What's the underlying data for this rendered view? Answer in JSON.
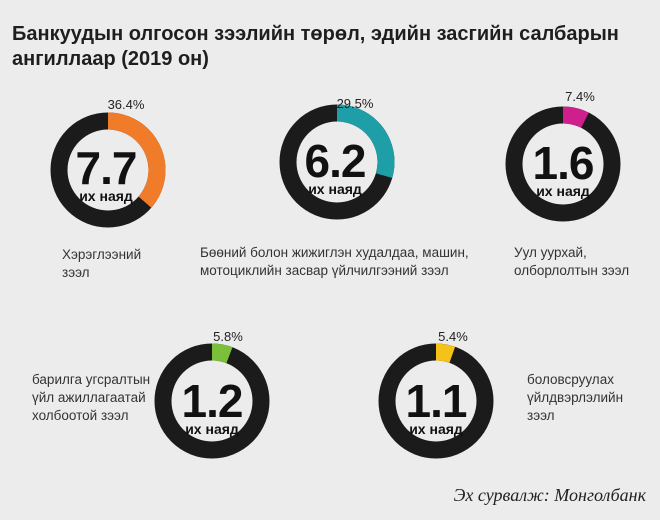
{
  "title": "Банкуудын олгосон зээлийн төрөл, эдийн засгийн салбарын ангиллаар (2019 он)",
  "source": "Эх сурвалж: Монголбанк",
  "unit_label": "их наяд",
  "colors": {
    "ring": "#1b1b1b",
    "orange": "#f07c2a",
    "teal": "#1e9ea6",
    "magenta": "#cf1f8c",
    "green": "#7bbf3a",
    "yellow": "#f5c21a"
  },
  "chart_data": {
    "type": "pie",
    "title": "Банкуудын олгосон зээлийн төрөл, эдийн засгийн салбарын ангиллаар (2019 он)",
    "value_unit": "их наяд",
    "items": [
      {
        "category_lines": [
          "Хэрэглээний",
          "зээл"
        ],
        "value": 7.7,
        "value_text": "7.7",
        "share_pct": 36.4,
        "share_text": "36.4%",
        "color": "#f07c2a"
      },
      {
        "category_lines": [
          "Бөөний болон жижиглэн худалдаа, машин,",
          "мотоциклийн засвар үйлчилгээний зээл"
        ],
        "value": 6.2,
        "value_text": "6.2",
        "share_pct": 29.5,
        "share_text": "29.5%",
        "color": "#1e9ea6"
      },
      {
        "category_lines": [
          "Уул уурхай,",
          "олборлолтын зээл"
        ],
        "value": 1.6,
        "value_text": "1.6",
        "share_pct": 7.4,
        "share_text": "7.4%",
        "color": "#cf1f8c"
      },
      {
        "category_lines": [
          "барилга угсралтын",
          "үйл ажиллагаатай",
          "холбоотой зээл"
        ],
        "value": 1.2,
        "value_text": "1.2",
        "share_pct": 5.8,
        "share_text": "5.8%",
        "color": "#7bbf3a"
      },
      {
        "category_lines": [
          "боловсруулах",
          "үйлдвэрлэлийн",
          "зээл"
        ],
        "value": 1.1,
        "value_text": "1.1",
        "share_pct": 5.4,
        "share_text": "5.4%",
        "color": "#f5c21a"
      }
    ]
  }
}
